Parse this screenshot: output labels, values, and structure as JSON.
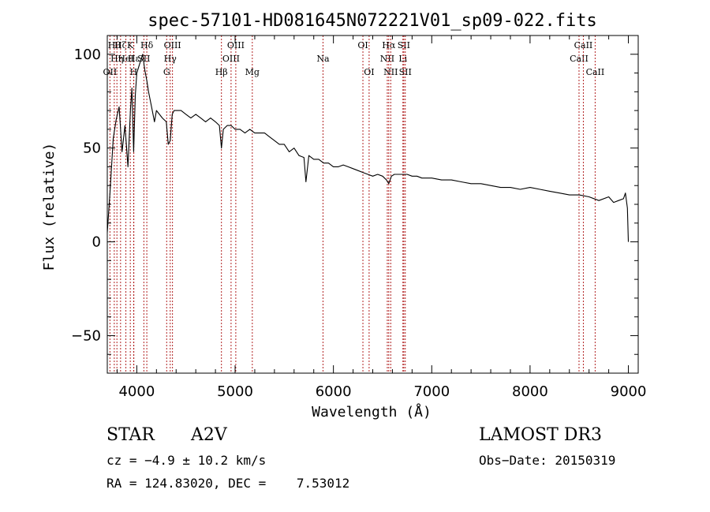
{
  "chart_data": {
    "type": "line",
    "title": "spec-57101-HD081645N072221V01_sp09-022.fits",
    "xlabel": "Wavelength (Å)",
    "ylabel": "Flux (relative)",
    "xlim": [
      3700,
      9100
    ],
    "ylim": [
      -70,
      110
    ],
    "x_ticks": [
      4000,
      5000,
      6000,
      7000,
      8000,
      9000
    ],
    "x_tick_labels": [
      "4000",
      "5000",
      "6000",
      "7000",
      "8000",
      "9000"
    ],
    "y_ticks": [
      -50,
      0,
      50,
      100
    ],
    "y_tick_labels": [
      "−50",
      "0",
      "50",
      "100"
    ],
    "line_color": "#000000",
    "marker_color": "#b22222",
    "series": [
      {
        "name": "flux",
        "x": [
          3700,
          3730,
          3760,
          3790,
          3820,
          3850,
          3880,
          3910,
          3935,
          3950,
          3968,
          3985,
          4000,
          4030,
          4060,
          4080,
          4102,
          4120,
          4150,
          4180,
          4200,
          4230,
          4260,
          4300,
          4320,
          4340,
          4360,
          4380,
          4400,
          4450,
          4500,
          4550,
          4600,
          4650,
          4700,
          4750,
          4800,
          4840,
          4861,
          4880,
          4920,
          4960,
          5000,
          5050,
          5100,
          5150,
          5200,
          5250,
          5300,
          5350,
          5400,
          5450,
          5500,
          5550,
          5600,
          5650,
          5700,
          5720,
          5750,
          5800,
          5850,
          5900,
          5950,
          6000,
          6050,
          6100,
          6150,
          6200,
          6250,
          6300,
          6350,
          6400,
          6450,
          6500,
          6540,
          6563,
          6590,
          6620,
          6650,
          6700,
          6750,
          6800,
          6850,
          6900,
          6950,
          7000,
          7100,
          7200,
          7300,
          7400,
          7500,
          7600,
          7700,
          7800,
          7900,
          8000,
          8100,
          8200,
          8300,
          8400,
          8500,
          8600,
          8700,
          8800,
          8850,
          8900,
          8950,
          8970,
          8990,
          9000
        ],
        "y": [
          5,
          28,
          55,
          65,
          72,
          48,
          62,
          40,
          70,
          82,
          48,
          78,
          90,
          95,
          100,
          92,
          86,
          80,
          72,
          64,
          70,
          68,
          66,
          64,
          52,
          54,
          68,
          70,
          70,
          70,
          68,
          66,
          68,
          66,
          64,
          66,
          64,
          62,
          50,
          60,
          62,
          62,
          60,
          60,
          58,
          60,
          58,
          58,
          58,
          56,
          54,
          52,
          52,
          48,
          50,
          46,
          45,
          32,
          46,
          44,
          44,
          42,
          42,
          40,
          40,
          41,
          40,
          39,
          38,
          37,
          36,
          35,
          36,
          35,
          33,
          31,
          35,
          36,
          36,
          36,
          36,
          35,
          35,
          34,
          34,
          34,
          33,
          33,
          32,
          31,
          31,
          30,
          29,
          29,
          28,
          29,
          28,
          27,
          26,
          25,
          25,
          24,
          22,
          24,
          21,
          22,
          23,
          26,
          18,
          0
        ]
      }
    ],
    "lines": [
      {
        "wl": 3727,
        "labels": [
          "OII"
        ],
        "label_rows": [
          2
        ]
      },
      {
        "wl": 3771,
        "labels": [
          "Hθ"
        ],
        "label_rows": [
          0
        ]
      },
      {
        "wl": 3798,
        "labels": [
          "Hη"
        ],
        "label_rows": [
          1
        ]
      },
      {
        "wl": 3835,
        "labels": [
          "Hζ"
        ],
        "label_rows": [
          0
        ]
      },
      {
        "wl": 3889,
        "labels": [
          "HeI"
        ],
        "label_rows": [
          1
        ]
      },
      {
        "wl": 3934,
        "labels": [
          "K"
        ],
        "label_rows": [
          0
        ]
      },
      {
        "wl": 3968,
        "labels": [
          "H"
        ],
        "label_rows": [
          2
        ]
      },
      {
        "wl": 3970,
        "labels": [
          "Hε"
        ],
        "label_rows": [
          1
        ]
      },
      {
        "wl": 4072,
        "labels": [
          "SII"
        ],
        "label_rows": [
          1
        ]
      },
      {
        "wl": 4102,
        "labels": [
          "Hδ"
        ],
        "label_rows": [
          0
        ]
      },
      {
        "wl": 4304,
        "labels": [
          "G"
        ],
        "label_rows": [
          2
        ]
      },
      {
        "wl": 4340,
        "labels": [
          "Hγ"
        ],
        "label_rows": [
          1
        ]
      },
      {
        "wl": 4363,
        "labels": [
          "OIII"
        ],
        "label_rows": [
          0
        ]
      },
      {
        "wl": 4861,
        "labels": [
          "Hβ"
        ],
        "label_rows": [
          2
        ]
      },
      {
        "wl": 4959,
        "labels": [
          "OIII"
        ],
        "label_rows": [
          1
        ]
      },
      {
        "wl": 5007,
        "labels": [
          "OIII"
        ],
        "label_rows": [
          0
        ]
      },
      {
        "wl": 5175,
        "labels": [
          "Mg"
        ],
        "label_rows": [
          2
        ]
      },
      {
        "wl": 5894,
        "labels": [
          "Na"
        ],
        "label_rows": [
          1
        ]
      },
      {
        "wl": 6300,
        "labels": [
          "OI"
        ],
        "label_rows": [
          0
        ]
      },
      {
        "wl": 6363,
        "labels": [
          "OI"
        ],
        "label_rows": [
          2
        ]
      },
      {
        "wl": 6548,
        "labels": [
          "NII"
        ],
        "label_rows": [
          1
        ]
      },
      {
        "wl": 6563,
        "labels": [
          "Hα"
        ],
        "label_rows": [
          0
        ]
      },
      {
        "wl": 6583,
        "labels": [
          "NII"
        ],
        "label_rows": [
          2
        ]
      },
      {
        "wl": 6707,
        "labels": [
          "Li"
        ],
        "label_rows": [
          1
        ]
      },
      {
        "wl": 6716,
        "labels": [
          "SII"
        ],
        "label_rows": [
          0
        ]
      },
      {
        "wl": 6731,
        "labels": [
          "SII"
        ],
        "label_rows": [
          2
        ]
      },
      {
        "wl": 8498,
        "labels": [
          "CaII"
        ],
        "label_rows": [
          1
        ]
      },
      {
        "wl": 8542,
        "labels": [
          "CaII"
        ],
        "label_rows": [
          0
        ]
      },
      {
        "wl": 8662,
        "labels": [
          "CaII"
        ],
        "label_rows": [
          2
        ]
      }
    ]
  },
  "info": {
    "class": "STAR",
    "subclass": "A2V",
    "survey": "LAMOST DR3",
    "cz": "cz = −4.9 ± 10.2 km/s",
    "obs_date": "Obs−Date: 20150319",
    "coords": "RA = 124.83020, DEC =    7.53012"
  }
}
